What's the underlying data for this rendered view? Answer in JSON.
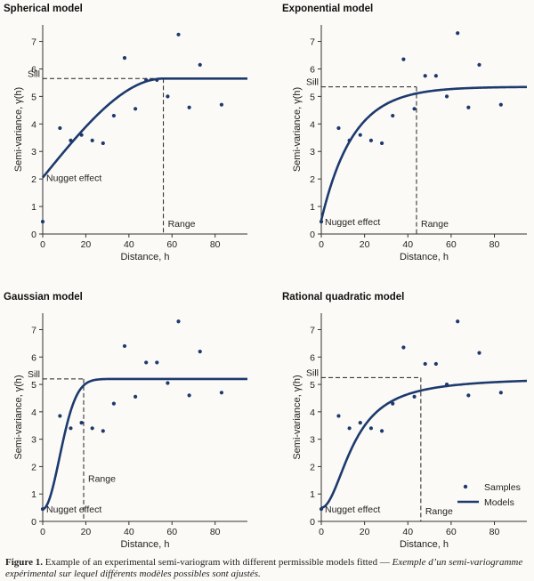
{
  "figure": {
    "colors": {
      "model": "#1d3a6e",
      "sample": "#1d3a6e",
      "axis": "#333333",
      "dash": "#222222",
      "background": "#fbfaf6"
    },
    "legend": {
      "samples": "Samples",
      "models": "Models"
    }
  },
  "chart_data": [
    {
      "type": "scatter",
      "title": "Spherical model",
      "xlabel": "Distance, h",
      "ylabel": "Semi-variance, γ(h)",
      "xlim": [
        0,
        95
      ],
      "ylim": [
        0,
        7.6
      ],
      "xticks": [
        0,
        20,
        40,
        60,
        80
      ],
      "yticks": [
        0,
        1,
        2,
        3,
        4,
        5,
        6,
        7
      ],
      "samples": {
        "x": [
          0,
          8,
          13,
          18,
          23,
          28,
          33,
          38,
          43,
          48,
          53,
          58,
          63,
          68,
          73,
          83
        ],
        "y": [
          0.45,
          3.85,
          3.4,
          3.6,
          3.4,
          3.3,
          4.3,
          6.4,
          4.55,
          5.6,
          5.6,
          5.0,
          7.25,
          4.6,
          6.15,
          4.7
        ]
      },
      "model": {
        "kind": "spherical",
        "nugget": 2.05,
        "sill": 5.65,
        "range": 56
      },
      "annotations": {
        "sill": "Sill",
        "range": "Range",
        "nugget": "Nugget effect"
      }
    },
    {
      "type": "scatter",
      "title": "Exponential model",
      "xlabel": "Distance, h",
      "ylabel": "Semi-variance, γ(h)",
      "xlim": [
        0,
        95
      ],
      "ylim": [
        0,
        7.6
      ],
      "xticks": [
        0,
        20,
        40,
        60,
        80
      ],
      "yticks": [
        0,
        1,
        2,
        3,
        4,
        5,
        6,
        7
      ],
      "samples": {
        "x": [
          0,
          8,
          13,
          18,
          23,
          28,
          33,
          38,
          43,
          48,
          53,
          58,
          63,
          68,
          73,
          83
        ],
        "y": [
          0.45,
          3.85,
          3.4,
          3.6,
          3.4,
          3.3,
          4.3,
          6.35,
          4.55,
          5.75,
          5.75,
          5.0,
          7.3,
          4.6,
          6.15,
          4.7
        ]
      },
      "model": {
        "kind": "exponential",
        "nugget": 0.5,
        "sill": 5.35,
        "range": 44
      },
      "annotations": {
        "sill": "Sill",
        "range": "Range",
        "nugget": "Nugget effect"
      }
    },
    {
      "type": "scatter",
      "title": "Gaussian model",
      "xlabel": "Distance, h",
      "ylabel": "Semi-variance, γ(h)",
      "xlim": [
        0,
        95
      ],
      "ylim": [
        0,
        7.6
      ],
      "xticks": [
        0,
        20,
        40,
        60,
        80
      ],
      "yticks": [
        0,
        1,
        2,
        3,
        4,
        5,
        6,
        7
      ],
      "samples": {
        "x": [
          0,
          8,
          13,
          18,
          23,
          28,
          33,
          38,
          43,
          48,
          53,
          58,
          63,
          68,
          73,
          83
        ],
        "y": [
          0.45,
          3.85,
          3.4,
          3.6,
          3.4,
          3.3,
          4.3,
          6.4,
          4.55,
          5.8,
          5.8,
          5.05,
          7.3,
          4.6,
          6.2,
          4.7
        ]
      },
      "model": {
        "kind": "gaussian",
        "nugget": 0.45,
        "sill": 5.2,
        "range": 19
      },
      "annotations": {
        "sill": "Sill",
        "range": "Range",
        "nugget": "Nugget effect"
      }
    },
    {
      "type": "scatter",
      "title": "Rational quadratic model",
      "xlabel": "Distance, h",
      "ylabel": "Semi-variance, γ(h)",
      "xlim": [
        0,
        95
      ],
      "ylim": [
        0,
        7.6
      ],
      "xticks": [
        0,
        20,
        40,
        60,
        80
      ],
      "yticks": [
        0,
        1,
        2,
        3,
        4,
        5,
        6,
        7
      ],
      "samples": {
        "x": [
          0,
          8,
          13,
          18,
          23,
          28,
          33,
          38,
          43,
          48,
          53,
          58,
          63,
          68,
          73,
          83
        ],
        "y": [
          0.45,
          3.85,
          3.4,
          3.6,
          3.4,
          3.3,
          4.3,
          6.35,
          4.55,
          5.75,
          5.75,
          5.0,
          7.3,
          4.6,
          6.15,
          4.7
        ]
      },
      "model": {
        "kind": "rational_quadratic",
        "nugget": 0.5,
        "sill": 5.25,
        "range": 46
      },
      "annotations": {
        "sill": "Sill",
        "range": "Range",
        "nugget": "Nugget effect"
      },
      "legend": true
    }
  ],
  "caption": {
    "label": "Figure 1.",
    "text_en": " Example of an experimental semi-variogram with different permissible models fitted — ",
    "text_fr": "Exemple d’un semi-variogramme expérimental sur lequel différents modèles possibles sont ajustés."
  }
}
